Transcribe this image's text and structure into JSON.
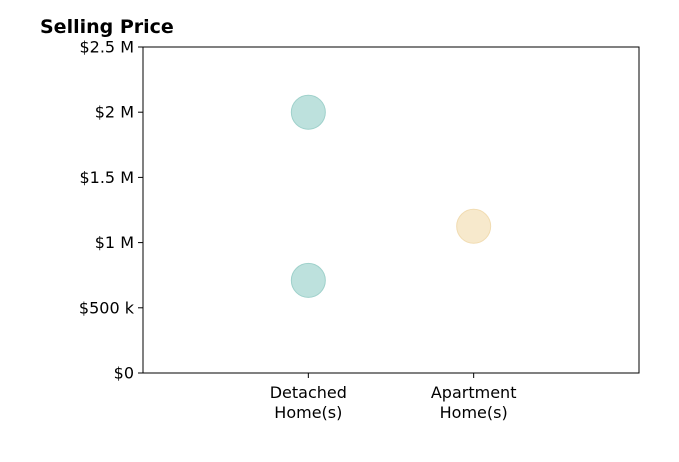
{
  "chart_data": {
    "type": "scatter",
    "title": "Selling Price",
    "categories": [
      "Detached\nHome(s)",
      "Apartment\nHome(s)"
    ],
    "y_ticks": [
      "$0",
      "$500 k",
      "$1 M",
      "$1.5 M",
      "$2 M",
      "$2.5 M"
    ],
    "y_tick_values": [
      0,
      500000,
      1000000,
      1500000,
      2000000,
      2500000
    ],
    "ylim": [
      0,
      2500000
    ],
    "x_range": [
      0,
      3
    ],
    "grid": false,
    "points": [
      {
        "category": "Detached\nHome(s)",
        "x": 1,
        "y": 2000000,
        "color": "#bde1dd"
      },
      {
        "category": "Detached\nHome(s)",
        "x": 1,
        "y": 710000,
        "color": "#bde1dd"
      },
      {
        "category": "Apartment\nHome(s)",
        "x": 2,
        "y": 1125000,
        "color": "#f7e9cc"
      }
    ],
    "colors": {
      "detached": "#bde1dd",
      "apartment": "#f7e9cc",
      "detached_edge": "#9fd1cb",
      "apartment_edge": "#f1dcb2"
    }
  }
}
